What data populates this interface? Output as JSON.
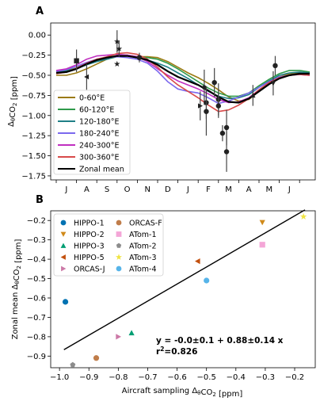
{
  "panel_labels": [
    "A",
    "B"
  ],
  "chart_data": [
    {
      "type": "line",
      "panel": "A",
      "xlabel": "",
      "ylabel": "Δ_θCO2 [ppm]",
      "x_months": [
        "J",
        "A",
        "S",
        "O",
        "N",
        "D",
        "J",
        "F",
        "M",
        "A",
        "M",
        "J"
      ],
      "ylim": [
        -1.8,
        0.15
      ],
      "yticks": [
        0.0,
        -0.25,
        -0.5,
        -0.75,
        -1.0,
        -1.25,
        -1.5,
        -1.75
      ],
      "ytick_labels": [
        "0.00",
        "−0.25",
        "−0.50",
        "−0.75",
        "−1.00",
        "−1.25",
        "−1.50",
        "−1.75"
      ],
      "xlim": [
        0,
        12.5
      ],
      "grid": false,
      "legend_position": "lower-left",
      "series": [
        {
          "name": "0-60°E",
          "color": "#9b7a12",
          "x": [
            0,
            0.5,
            1,
            1.5,
            2,
            2.5,
            3,
            3.5,
            4,
            4.5,
            5,
            5.5,
            6,
            6.5,
            7,
            7.5,
            8,
            8.5,
            9,
            9.5,
            10,
            10.5,
            11,
            11.5,
            12,
            12.5
          ],
          "y": [
            -0.5,
            -0.5,
            -0.47,
            -0.42,
            -0.36,
            -0.3,
            -0.26,
            -0.25,
            -0.27,
            -0.27,
            -0.28,
            -0.33,
            -0.4,
            -0.47,
            -0.53,
            -0.6,
            -0.68,
            -0.77,
            -0.82,
            -0.8,
            -0.7,
            -0.6,
            -0.52,
            -0.48,
            -0.47,
            -0.48
          ]
        },
        {
          "name": "60-120°E",
          "color": "#2f9a4a",
          "x": [
            0,
            0.5,
            1,
            1.5,
            2,
            2.5,
            3,
            3.5,
            4,
            4.5,
            5,
            5.5,
            6,
            6.5,
            7,
            7.5,
            8,
            8.5,
            9,
            9.5,
            10,
            10.5,
            11,
            11.5,
            12,
            12.5
          ],
          "y": [
            -0.45,
            -0.44,
            -0.41,
            -0.36,
            -0.32,
            -0.3,
            -0.27,
            -0.26,
            -0.27,
            -0.28,
            -0.3,
            -0.35,
            -0.42,
            -0.5,
            -0.58,
            -0.66,
            -0.72,
            -0.76,
            -0.76,
            -0.72,
            -0.63,
            -0.55,
            -0.48,
            -0.44,
            -0.44,
            -0.46
          ]
        },
        {
          "name": "120-180°E",
          "color": "#1f7f87",
          "x": [
            0,
            0.5,
            1,
            1.5,
            2,
            2.5,
            3,
            3.5,
            4,
            4.5,
            5,
            5.5,
            6,
            6.5,
            7,
            7.5,
            8,
            8.5,
            9,
            9.5,
            10,
            10.5,
            11,
            11.5,
            12,
            12.5
          ],
          "y": [
            -0.46,
            -0.45,
            -0.42,
            -0.37,
            -0.33,
            -0.3,
            -0.26,
            -0.26,
            -0.28,
            -0.31,
            -0.35,
            -0.4,
            -0.47,
            -0.54,
            -0.62,
            -0.7,
            -0.76,
            -0.79,
            -0.78,
            -0.74,
            -0.65,
            -0.57,
            -0.5,
            -0.47,
            -0.46,
            -0.47
          ]
        },
        {
          "name": "180-240°E",
          "color": "#7b68ee",
          "x": [
            0,
            0.5,
            1,
            1.5,
            2,
            2.5,
            3,
            3.5,
            4,
            4.5,
            5,
            5.5,
            6,
            6.5,
            7,
            7.5,
            8,
            8.5,
            9,
            9.5,
            10,
            10.5,
            11,
            11.5,
            12,
            12.5
          ],
          "y": [
            -0.45,
            -0.43,
            -0.39,
            -0.34,
            -0.3,
            -0.28,
            -0.27,
            -0.28,
            -0.3,
            -0.35,
            -0.45,
            -0.58,
            -0.67,
            -0.7,
            -0.72,
            -0.78,
            -0.85,
            -0.82,
            -0.77,
            -0.72,
            -0.65,
            -0.58,
            -0.52,
            -0.5,
            -0.49,
            -0.5
          ]
        },
        {
          "name": "240-300°E",
          "color": "#c02fc0",
          "x": [
            0,
            0.5,
            1,
            1.5,
            2,
            2.5,
            3,
            3.5,
            4,
            4.5,
            5,
            5.5,
            6,
            6.5,
            7,
            7.5,
            8,
            8.5,
            9,
            9.5,
            10,
            10.5,
            11,
            11.5,
            12,
            12.5
          ],
          "y": [
            -0.44,
            -0.42,
            -0.37,
            -0.3,
            -0.26,
            -0.25,
            -0.24,
            -0.25,
            -0.27,
            -0.33,
            -0.42,
            -0.5,
            -0.57,
            -0.62,
            -0.67,
            -0.73,
            -0.8,
            -0.84,
            -0.83,
            -0.78,
            -0.68,
            -0.59,
            -0.53,
            -0.5,
            -0.49,
            -0.5
          ]
        },
        {
          "name": "300-360°E",
          "color": "#d84a4a",
          "x": [
            0,
            0.5,
            1,
            1.5,
            2,
            2.5,
            3,
            3.5,
            4,
            4.5,
            5,
            5.5,
            6,
            6.5,
            7,
            7.5,
            8,
            8.5,
            9,
            9.5,
            10,
            10.5,
            11,
            11.5,
            12,
            12.5
          ],
          "y": [
            -0.48,
            -0.46,
            -0.41,
            -0.35,
            -0.3,
            -0.27,
            -0.23,
            -0.22,
            -0.24,
            -0.3,
            -0.4,
            -0.52,
            -0.62,
            -0.7,
            -0.78,
            -0.87,
            -0.95,
            -0.93,
            -0.87,
            -0.79,
            -0.68,
            -0.59,
            -0.53,
            -0.5,
            -0.49,
            -0.5
          ]
        },
        {
          "name": "Zonal mean",
          "color": "#000000",
          "x": [
            0,
            0.5,
            1,
            1.5,
            2,
            2.5,
            3,
            3.5,
            4,
            4.5,
            5,
            5.5,
            6,
            6.5,
            7,
            7.5,
            8,
            8.5,
            9,
            9.5,
            10,
            10.5,
            11,
            11.5,
            12,
            12.5
          ],
          "y": [
            -0.47,
            -0.46,
            -0.42,
            -0.36,
            -0.31,
            -0.28,
            -0.26,
            -0.26,
            -0.28,
            -0.31,
            -0.37,
            -0.45,
            -0.52,
            -0.57,
            -0.62,
            -0.69,
            -0.77,
            -0.83,
            -0.84,
            -0.79,
            -0.7,
            -0.61,
            -0.54,
            -0.5,
            -0.48,
            -0.48
          ]
        }
      ],
      "obs_points": [
        {
          "x": 1.0,
          "y": -0.32,
          "err": 0.14,
          "marker": "square"
        },
        {
          "x": 1.5,
          "y": -0.52,
          "err": 0.16,
          "marker": "tri-left"
        },
        {
          "x": 3.0,
          "y": -0.08,
          "err": 0.14,
          "marker": "star"
        },
        {
          "x": 3.0,
          "y": -0.36,
          "err": 0.0,
          "marker": "star"
        },
        {
          "x": 3.1,
          "y": -0.17,
          "err": 0.1,
          "marker": "star"
        },
        {
          "x": 4.1,
          "y": -0.28,
          "err": 0.06,
          "marker": "circle"
        },
        {
          "x": 7.1,
          "y": -0.88,
          "err": 0.18,
          "marker": "tri-right"
        },
        {
          "x": 7.3,
          "y": -0.65,
          "err": 0.22,
          "marker": "pent"
        },
        {
          "x": 7.4,
          "y": -0.84,
          "err": 0.2,
          "marker": "hex"
        },
        {
          "x": 7.4,
          "y": -0.95,
          "err": 0.3,
          "marker": "circle"
        },
        {
          "x": 7.8,
          "y": -0.59,
          "err": 0.18,
          "marker": "circle"
        },
        {
          "x": 8.0,
          "y": -0.8,
          "err": 0.2,
          "marker": "circle"
        },
        {
          "x": 8.0,
          "y": -0.88,
          "err": 0.15,
          "marker": "circle"
        },
        {
          "x": 8.2,
          "y": -1.22,
          "err": 0.1,
          "marker": "circle"
        },
        {
          "x": 8.4,
          "y": -1.15,
          "err": 0.22,
          "marker": "circle"
        },
        {
          "x": 8.4,
          "y": -1.45,
          "err": 0.25,
          "marker": "circle"
        },
        {
          "x": 9.7,
          "y": -0.75,
          "err": 0.13,
          "marker": "tri-up"
        },
        {
          "x": 10.7,
          "y": -0.6,
          "err": 0.15,
          "marker": "tri-down"
        },
        {
          "x": 10.8,
          "y": -0.38,
          "err": 0.12,
          "marker": "circle"
        }
      ]
    },
    {
      "type": "scatter",
      "panel": "B",
      "xlabel": "Aircraft sampling Δ_θCO2 [ppm]",
      "ylabel": "Zonal mean Δ_θCO2 [ppm]",
      "xlim": [
        -1.03,
        -0.13
      ],
      "ylim": [
        -0.96,
        -0.15
      ],
      "xticks": [
        -1.0,
        -0.9,
        -0.8,
        -0.7,
        -0.6,
        -0.5,
        -0.4,
        -0.3,
        -0.2
      ],
      "xtick_labels": [
        "−1.0",
        "−0.9",
        "−0.8",
        "−0.7",
        "−0.6",
        "−0.5",
        "−0.4",
        "−0.3",
        "−0.2"
      ],
      "yticks": [
        -0.2,
        -0.3,
        -0.4,
        -0.5,
        -0.6,
        -0.7,
        -0.8,
        -0.9
      ],
      "ytick_labels": [
        "−0.2",
        "−0.3",
        "−0.4",
        "−0.5",
        "−0.6",
        "−0.7",
        "−0.8",
        "−0.9"
      ],
      "grid": false,
      "legend_position": "upper-left",
      "series": [
        {
          "name": "HIPPO-1",
          "color": "#0072b2",
          "marker": "circle",
          "points": [
            [
              -0.98,
              -0.62
            ]
          ]
        },
        {
          "name": "HIPPO-2",
          "color": "#d08a1a",
          "marker": "tri-down",
          "points": [
            [
              -0.31,
              -0.21
            ]
          ]
        },
        {
          "name": "HIPPO-3",
          "color": "#009e73",
          "marker": "tri-up",
          "points": [
            [
              -0.755,
              -0.78
            ]
          ]
        },
        {
          "name": "HIPPO-5",
          "color": "#c2500e",
          "marker": "tri-left",
          "points": [
            [
              -0.53,
              -0.41
            ]
          ]
        },
        {
          "name": "ORCAS-J",
          "color": "#cc79a7",
          "marker": "tri-right",
          "points": [
            [
              -0.8,
              -0.8
            ]
          ]
        },
        {
          "name": "ORCAS-F",
          "color": "#c07d4a",
          "marker": "circle",
          "points": [
            [
              -0.875,
              -0.91
            ]
          ]
        },
        {
          "name": "ATom-1",
          "color": "#f4a6d7",
          "marker": "square",
          "points": [
            [
              -0.31,
              -0.325
            ]
          ]
        },
        {
          "name": "ATom-2",
          "color": "#8c8c8c",
          "marker": "pent",
          "points": [
            [
              -0.955,
              -0.945
            ]
          ]
        },
        {
          "name": "ATom-3",
          "color": "#f0e442",
          "marker": "star",
          "points": [
            [
              -0.17,
              -0.18
            ]
          ]
        },
        {
          "name": "ATom-4",
          "color": "#56b4e9",
          "marker": "hex",
          "points": [
            [
              -0.5,
              -0.51
            ]
          ]
        }
      ],
      "fit_line": {
        "slope": 0.88,
        "intercept": 0.0,
        "x_range": [
          -0.985,
          -0.165
        ],
        "color": "#000000"
      },
      "annotation": {
        "line1": "y = -0.0±0.1 + 0.88±0.14 x",
        "line2_prefix": "r",
        "line2_sup": "2",
        "line2_suffix": "=0.826"
      }
    }
  ]
}
